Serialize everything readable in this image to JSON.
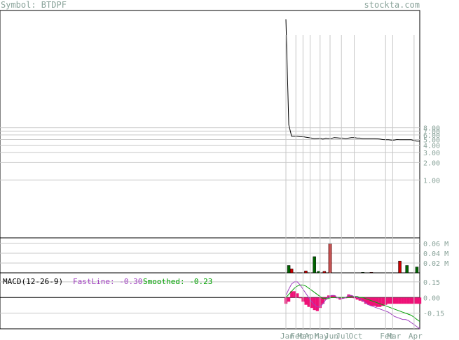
{
  "header": {
    "symbol_label": "Symbol: BTDPF",
    "site": "stockta.com"
  },
  "colors": {
    "text": "#8aa39a",
    "price_line": "#000000",
    "grid": "#c8c8c8",
    "vol_up": "#006400",
    "vol_down": "#cc0000",
    "macd_fast": "#a040c0",
    "macd_smooth": "#00a000",
    "macd_hist": "#ee1177"
  },
  "chart_data": [
    {
      "type": "line",
      "title": "",
      "scale": "log",
      "yticks": [
        "1.00",
        "2.00",
        "3.00",
        "4.00",
        "5.00",
        "6.00",
        "7.00",
        "8.00"
      ],
      "xticks": [
        "Jan",
        "Feb",
        "Mar",
        "Apr",
        "May",
        "Jun",
        "Jul",
        "Oct",
        "Feb",
        "Mar",
        "Apr"
      ],
      "x": [
        0,
        2,
        4,
        6,
        8,
        10,
        12,
        14,
        16,
        18,
        20,
        22,
        24,
        26,
        28,
        30,
        32,
        34,
        36,
        38,
        40,
        42,
        44,
        46,
        48,
        50,
        52,
        54,
        56,
        58,
        60,
        62,
        64,
        66,
        68,
        70,
        72,
        74,
        76,
        78,
        80,
        82,
        84,
        86,
        88,
        90,
        92,
        94
      ],
      "values": [
        600,
        9.0,
        5.7,
        5.7,
        5.7,
        5.6,
        5.6,
        5.5,
        5.4,
        5.3,
        5.2,
        5.25,
        5.3,
        5.1,
        5.3,
        5.25,
        5.25,
        5.4,
        5.35,
        5.3,
        5.3,
        5.2,
        5.3,
        5.4,
        5.4,
        5.3,
        5.3,
        5.2,
        5.2,
        5.2,
        5.2,
        5.2,
        5.15,
        5.1,
        5.0,
        4.95,
        4.95,
        4.9,
        4.9,
        5.0,
        4.95,
        4.95,
        4.95,
        4.95,
        4.95,
        4.8,
        4.7,
        4.7
      ]
    },
    {
      "type": "bar",
      "title": "",
      "yticks": [
        "0.02 M",
        "0.04 M",
        "0.06 M"
      ],
      "ylim": [
        0,
        0.07
      ],
      "bars": [
        {
          "x": 2,
          "value": 0.015,
          "dir": "up"
        },
        {
          "x": 4,
          "value": 0.008,
          "dir": "down"
        },
        {
          "x": 14,
          "value": 0.004,
          "dir": "down"
        },
        {
          "x": 20,
          "value": 0.033,
          "dir": "up"
        },
        {
          "x": 23,
          "value": 0.003,
          "dir": "up"
        },
        {
          "x": 27,
          "value": 0.003,
          "dir": "down"
        },
        {
          "x": 31,
          "value": 0.059,
          "dir": "down"
        },
        {
          "x": 54,
          "value": 0.001,
          "dir": "up"
        },
        {
          "x": 60,
          "value": 0.001,
          "dir": "down"
        },
        {
          "x": 80,
          "value": 0.024,
          "dir": "down"
        },
        {
          "x": 85,
          "value": 0.015,
          "dir": "up"
        },
        {
          "x": 92,
          "value": 0.012,
          "dir": "up"
        }
      ]
    },
    {
      "type": "line",
      "title": "MACD(12-26-9)",
      "fast_label": "FastLine: -0.30",
      "smooth_label": "Smoothed: -0.23",
      "yticks": [
        "0.15",
        "0.00",
        "-0.15"
      ],
      "ylim": [
        -0.3,
        0.23
      ],
      "x": [
        0,
        2,
        4,
        6,
        8,
        10,
        12,
        14,
        16,
        18,
        20,
        22,
        24,
        26,
        28,
        30,
        32,
        34,
        36,
        38,
        40,
        42,
        44,
        46,
        48,
        50,
        52,
        54,
        56,
        58,
        60,
        62,
        64,
        66,
        68,
        70,
        72,
        74,
        76,
        78,
        80,
        82,
        84,
        86,
        88,
        90,
        92,
        94
      ],
      "fast": [
        0.02,
        0.08,
        0.13,
        0.15,
        0.15,
        0.12,
        0.08,
        0.04,
        0.0,
        -0.04,
        -0.07,
        -0.09,
        -0.09,
        -0.06,
        -0.02,
        0.01,
        0.02,
        0.02,
        0.0,
        -0.01,
        -0.01,
        0.0,
        0.02,
        0.02,
        0.01,
        0.0,
        -0.01,
        -0.03,
        -0.05,
        -0.07,
        -0.08,
        -0.09,
        -0.1,
        -0.11,
        -0.12,
        -0.13,
        -0.14,
        -0.16,
        -0.18,
        -0.19,
        -0.2,
        -0.21,
        -0.21,
        -0.22,
        -0.24,
        -0.26,
        -0.28,
        -0.3
      ],
      "smoothed": [
        0.0,
        0.03,
        0.06,
        0.09,
        0.11,
        0.12,
        0.12,
        0.11,
        0.09,
        0.07,
        0.05,
        0.03,
        0.01,
        -0.01,
        -0.01,
        -0.01,
        0.0,
        0.0,
        0.0,
        0.0,
        0.0,
        0.0,
        0.0,
        0.01,
        0.01,
        0.01,
        0.0,
        0.0,
        -0.01,
        -0.02,
        -0.03,
        -0.04,
        -0.05,
        -0.06,
        -0.07,
        -0.08,
        -0.09,
        -0.1,
        -0.11,
        -0.12,
        -0.13,
        -0.14,
        -0.15,
        -0.16,
        -0.17,
        -0.19,
        -0.21,
        -0.23
      ],
      "histogram": [
        -0.06,
        -0.04,
        0.06,
        0.06,
        0.04,
        0.0,
        -0.04,
        -0.07,
        -0.09,
        -0.1,
        -0.12,
        -0.13,
        -0.1,
        -0.06,
        -0.02,
        0.02,
        0.02,
        0.02,
        0.0,
        -0.02,
        -0.01,
        0.0,
        0.03,
        0.02,
        0.0,
        -0.02,
        -0.03,
        -0.04,
        -0.06,
        -0.07,
        -0.08,
        -0.08,
        -0.09,
        -0.09,
        -0.08,
        -0.07,
        -0.06,
        -0.06,
        -0.06,
        -0.06,
        -0.06,
        -0.06,
        -0.06,
        -0.06,
        -0.06,
        -0.06,
        -0.06,
        -0.06
      ]
    }
  ]
}
